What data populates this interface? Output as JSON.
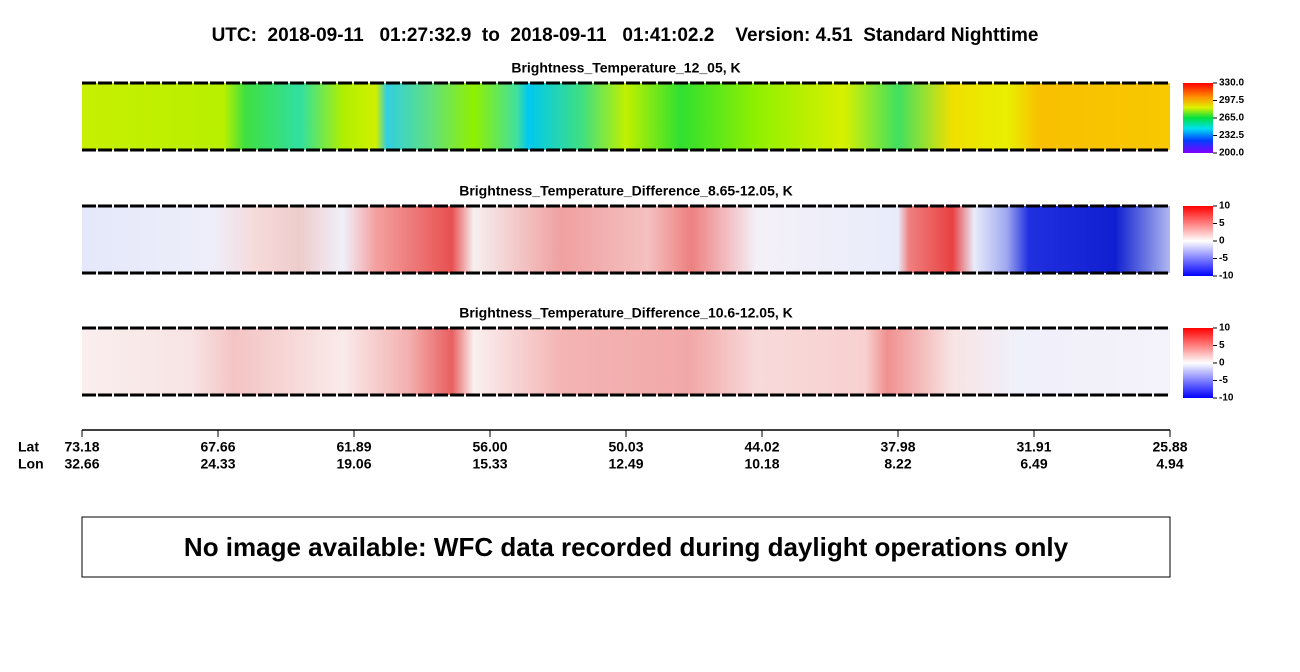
{
  "title": "UTC:  2018-09-11   01:27:32.9  to  2018-09-11   01:41:02.2    Version: 4.51  Standard Nighttime",
  "chart_data": [
    {
      "type": "heatmap",
      "title": "Brightness_Temperature_12_05, K",
      "zlim": [
        200,
        330
      ],
      "zticks": [
        {
          "value": 330,
          "label": "330.0"
        },
        {
          "value": 297.5,
          "label": "297.5"
        },
        {
          "value": 265,
          "label": "265.0"
        },
        {
          "value": 232.5,
          "label": "232.5"
        },
        {
          "value": 200,
          "label": "200.0"
        }
      ]
    },
    {
      "type": "heatmap",
      "title": "Brightness_Temperature_Difference_8.65-12.05, K",
      "zlim": [
        -10,
        10
      ],
      "zticks": [
        10,
        5,
        0,
        -5,
        -10
      ]
    },
    {
      "type": "heatmap",
      "title": "Brightness_Temperature_Difference_10.6-12.05, K",
      "zlim": [
        -10,
        10
      ],
      "zticks": [
        10,
        5,
        0,
        -5,
        -10
      ]
    }
  ],
  "x_axis": {
    "row_labels": [
      "Lat",
      "Lon"
    ],
    "lat": [
      73.18,
      67.66,
      61.89,
      {
        "value": 56,
        "label": "56.00"
      },
      50.03,
      44.02,
      37.98,
      31.91,
      25.88
    ],
    "lon": [
      32.66,
      24.33,
      19.06,
      15.33,
      12.49,
      10.18,
      8.22,
      6.49,
      4.94
    ]
  },
  "notice": "No image available: WFC data recorded during daylight operations only"
}
